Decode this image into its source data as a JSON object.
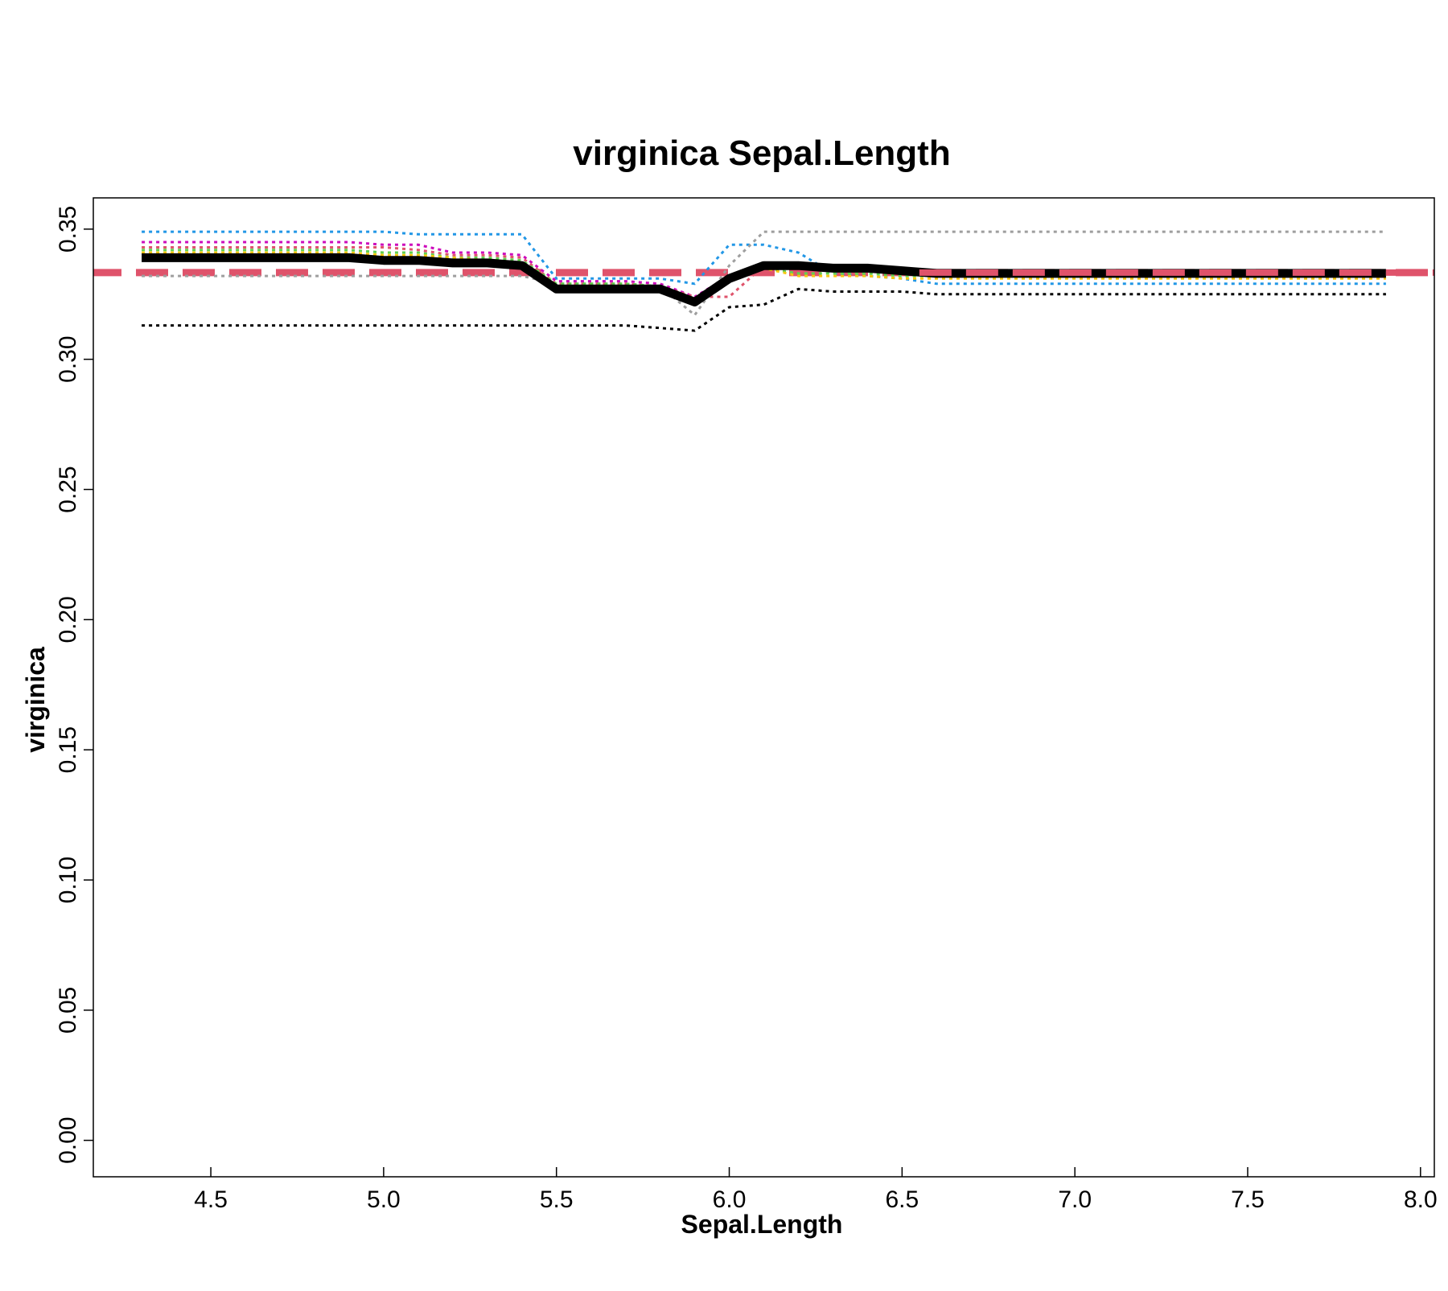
{
  "chart_data": {
    "type": "line",
    "title": "virginica  Sepal.Length",
    "xlabel": "Sepal.Length",
    "ylabel": "virginica",
    "xlim": [
      4.16,
      8.04
    ],
    "ylim": [
      -0.014,
      0.362
    ],
    "x_ticks": [
      "4.5",
      "5.0",
      "5.5",
      "6.0",
      "6.5",
      "7.0",
      "7.5",
      "8.0"
    ],
    "y_ticks": [
      "0.00",
      "0.05",
      "0.10",
      "0.15",
      "0.20",
      "0.25",
      "0.30",
      "0.35"
    ],
    "grid": false,
    "legend": "none",
    "reference_line": {
      "y": 0.3333,
      "color": "#DF536B",
      "style": "dashed"
    },
    "x": [
      4.3,
      4.9,
      5.0,
      5.1,
      5.2,
      5.3,
      5.4,
      5.5,
      5.6,
      5.7,
      5.8,
      5.9,
      6.0,
      6.1,
      6.2,
      6.3,
      6.4,
      6.5,
      6.6,
      6.7,
      7.0,
      7.5,
      7.9
    ],
    "series": [
      {
        "color": "#000000",
        "style": "solid-thick",
        "values": [
          0.339,
          0.339,
          0.338,
          0.338,
          0.337,
          0.337,
          0.336,
          0.327,
          0.327,
          0.327,
          0.327,
          0.322,
          0.331,
          0.336,
          0.336,
          0.335,
          0.335,
          0.334,
          0.333,
          0.333,
          0.333,
          0.333,
          0.333
        ]
      },
      {
        "color": "#000000",
        "style": "dotted",
        "values": [
          0.313,
          0.313,
          0.313,
          0.313,
          0.313,
          0.313,
          0.313,
          0.313,
          0.313,
          0.313,
          0.312,
          0.311,
          0.32,
          0.321,
          0.327,
          0.326,
          0.326,
          0.326,
          0.325,
          0.325,
          0.325,
          0.325,
          0.325
        ]
      },
      {
        "color": "#2297E6",
        "style": "dotted",
        "values": [
          0.349,
          0.349,
          0.349,
          0.348,
          0.348,
          0.348,
          0.348,
          0.331,
          0.331,
          0.331,
          0.331,
          0.329,
          0.344,
          0.344,
          0.341,
          0.333,
          0.332,
          0.331,
          0.329,
          0.329,
          0.329,
          0.329,
          0.329
        ]
      },
      {
        "color": "#9E9E9E",
        "style": "dotted",
        "values": [
          0.332,
          0.332,
          0.332,
          0.332,
          0.332,
          0.332,
          0.332,
          0.329,
          0.329,
          0.329,
          0.328,
          0.317,
          0.336,
          0.349,
          0.349,
          0.349,
          0.349,
          0.349,
          0.349,
          0.349,
          0.349,
          0.349,
          0.349
        ]
      },
      {
        "color": "#CD0BBC",
        "style": "dotted",
        "values": [
          0.345,
          0.345,
          0.344,
          0.344,
          0.341,
          0.341,
          0.34,
          0.33,
          0.33,
          0.33,
          0.329,
          0.324,
          0.332,
          0.336,
          0.336,
          0.336,
          0.335,
          0.334,
          0.333,
          0.333,
          0.333,
          0.333,
          0.333
        ]
      },
      {
        "color": "#DF536B",
        "style": "dotted",
        "values": [
          0.343,
          0.343,
          0.343,
          0.342,
          0.34,
          0.34,
          0.339,
          0.329,
          0.329,
          0.329,
          0.328,
          0.324,
          0.324,
          0.336,
          0.336,
          0.335,
          0.335,
          0.334,
          0.334,
          0.334,
          0.334,
          0.334,
          0.334
        ]
      },
      {
        "color": "#61D04F",
        "style": "dotted",
        "values": [
          0.342,
          0.342,
          0.341,
          0.341,
          0.339,
          0.339,
          0.338,
          0.329,
          0.329,
          0.329,
          0.328,
          0.323,
          0.331,
          0.335,
          0.333,
          0.333,
          0.333,
          0.332,
          0.332,
          0.332,
          0.332,
          0.332,
          0.332
        ]
      },
      {
        "color": "#F5C710",
        "style": "dotted",
        "values": [
          0.341,
          0.341,
          0.34,
          0.34,
          0.339,
          0.338,
          0.337,
          0.328,
          0.328,
          0.328,
          0.328,
          0.323,
          0.33,
          0.335,
          0.332,
          0.332,
          0.332,
          0.331,
          0.331,
          0.331,
          0.331,
          0.331,
          0.331
        ]
      }
    ]
  }
}
